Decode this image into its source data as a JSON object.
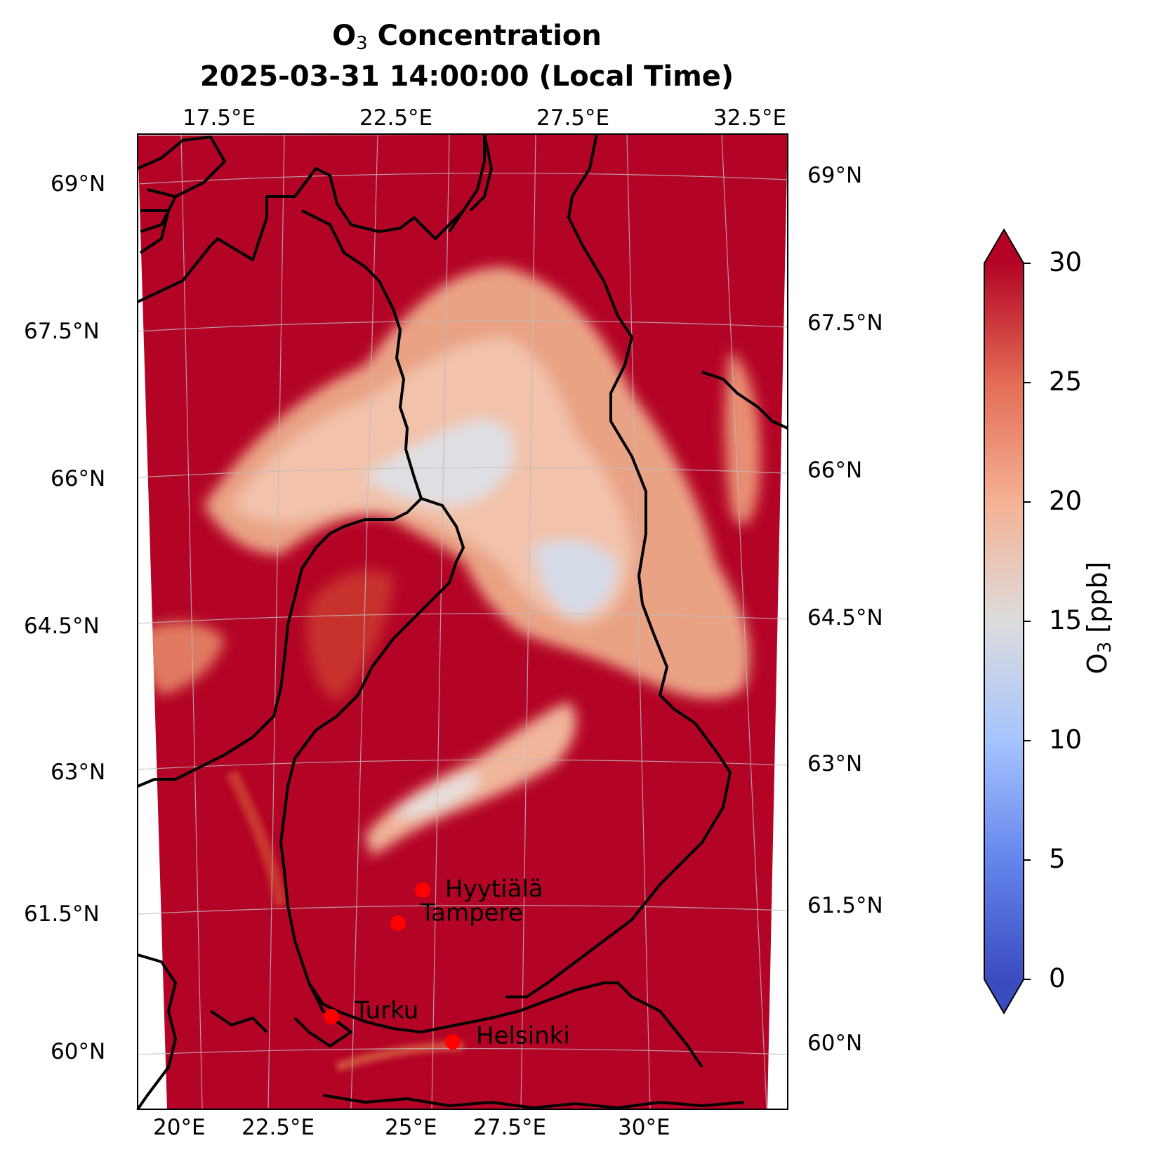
{
  "title": {
    "species": "O",
    "species_sub": "3",
    "line1_suffix": " Concentration",
    "line2": "2025-03-31 14:00:00 (Local Time)"
  },
  "map": {
    "top_longitude_labels": [
      "17.5°E",
      "22.5°E",
      "27.5°E",
      "32.5°E"
    ],
    "bottom_longitude_labels": [
      "20°E",
      "22.5°E",
      "25°E",
      "27.5°E",
      "30°E"
    ],
    "left_latitude_labels": [
      "69°N",
      "67.5°N",
      "66°N",
      "64.5°N",
      "63°N",
      "61.5°N",
      "60°N"
    ],
    "right_latitude_labels": [
      "69°N",
      "67.5°N",
      "66°N",
      "64.5°N",
      "63°N",
      "61.5°N",
      "60°N"
    ],
    "colors": {
      "high": "#b40426",
      "mid_high": "#f08a6c",
      "mid": "#dddcdc",
      "low": "#3b4cc0",
      "city": "#ff0000",
      "border": "#000000"
    },
    "cities": [
      {
        "name": "Hyytiälä"
      },
      {
        "name": "Tampere"
      },
      {
        "name": "Turku"
      },
      {
        "name": "Helsinki"
      }
    ]
  },
  "colorbar": {
    "label_species": "O",
    "label_sub": "3",
    "label_unit": " [ppb]",
    "ticks": [
      "30",
      "25",
      "20",
      "15",
      "10",
      "5",
      "0"
    ],
    "range": [
      0,
      30
    ],
    "extend": "both",
    "colormap": "coolwarm"
  }
}
